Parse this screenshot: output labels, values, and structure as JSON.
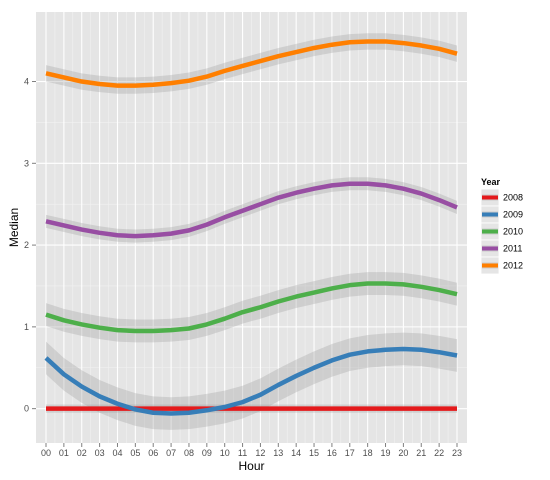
{
  "chart_data": {
    "type": "line",
    "xlabel": "Hour",
    "ylabel": "Median",
    "x": [
      "00",
      "01",
      "02",
      "03",
      "04",
      "05",
      "06",
      "07",
      "08",
      "09",
      "10",
      "11",
      "12",
      "13",
      "14",
      "15",
      "16",
      "17",
      "18",
      "19",
      "20",
      "21",
      "22",
      "23"
    ],
    "ylim": [
      -0.42,
      4.85
    ],
    "y_ticks": [
      0,
      1,
      2,
      3,
      4
    ],
    "grid": true,
    "background": "#e5e5e5",
    "legend": {
      "title": "Year",
      "position": "right"
    },
    "series": [
      {
        "name": "2008",
        "color": "#e41a1c",
        "values": [
          0,
          0,
          0,
          0,
          0,
          0,
          0,
          0,
          0,
          0,
          0,
          0,
          0,
          0,
          0,
          0,
          0,
          0,
          0,
          0,
          0,
          0,
          0,
          0
        ],
        "band": 0.05
      },
      {
        "name": "2009",
        "color": "#377eb8",
        "values": [
          0.62,
          0.42,
          0.27,
          0.15,
          0.06,
          -0.01,
          -0.05,
          -0.06,
          -0.05,
          -0.02,
          0.02,
          0.08,
          0.17,
          0.29,
          0.4,
          0.5,
          0.59,
          0.66,
          0.7,
          0.72,
          0.73,
          0.72,
          0.69,
          0.65
        ],
        "band": 0.2
      },
      {
        "name": "2010",
        "color": "#4daf4a",
        "values": [
          1.15,
          1.08,
          1.03,
          0.99,
          0.96,
          0.95,
          0.95,
          0.96,
          0.98,
          1.03,
          1.1,
          1.18,
          1.24,
          1.31,
          1.37,
          1.42,
          1.47,
          1.51,
          1.53,
          1.53,
          1.52,
          1.49,
          1.45,
          1.4
        ],
        "band": 0.14
      },
      {
        "name": "2011",
        "color": "#984ea3",
        "values": [
          2.29,
          2.24,
          2.19,
          2.15,
          2.12,
          2.11,
          2.12,
          2.14,
          2.18,
          2.25,
          2.34,
          2.42,
          2.5,
          2.58,
          2.64,
          2.69,
          2.73,
          2.75,
          2.75,
          2.73,
          2.69,
          2.63,
          2.55,
          2.46
        ],
        "band": 0.08
      },
      {
        "name": "2012",
        "color": "#ff7f00",
        "values": [
          4.1,
          4.05,
          4.0,
          3.97,
          3.95,
          3.95,
          3.96,
          3.98,
          4.01,
          4.06,
          4.13,
          4.19,
          4.25,
          4.31,
          4.36,
          4.41,
          4.45,
          4.48,
          4.49,
          4.49,
          4.47,
          4.44,
          4.4,
          4.34
        ],
        "band": 0.1
      }
    ]
  }
}
